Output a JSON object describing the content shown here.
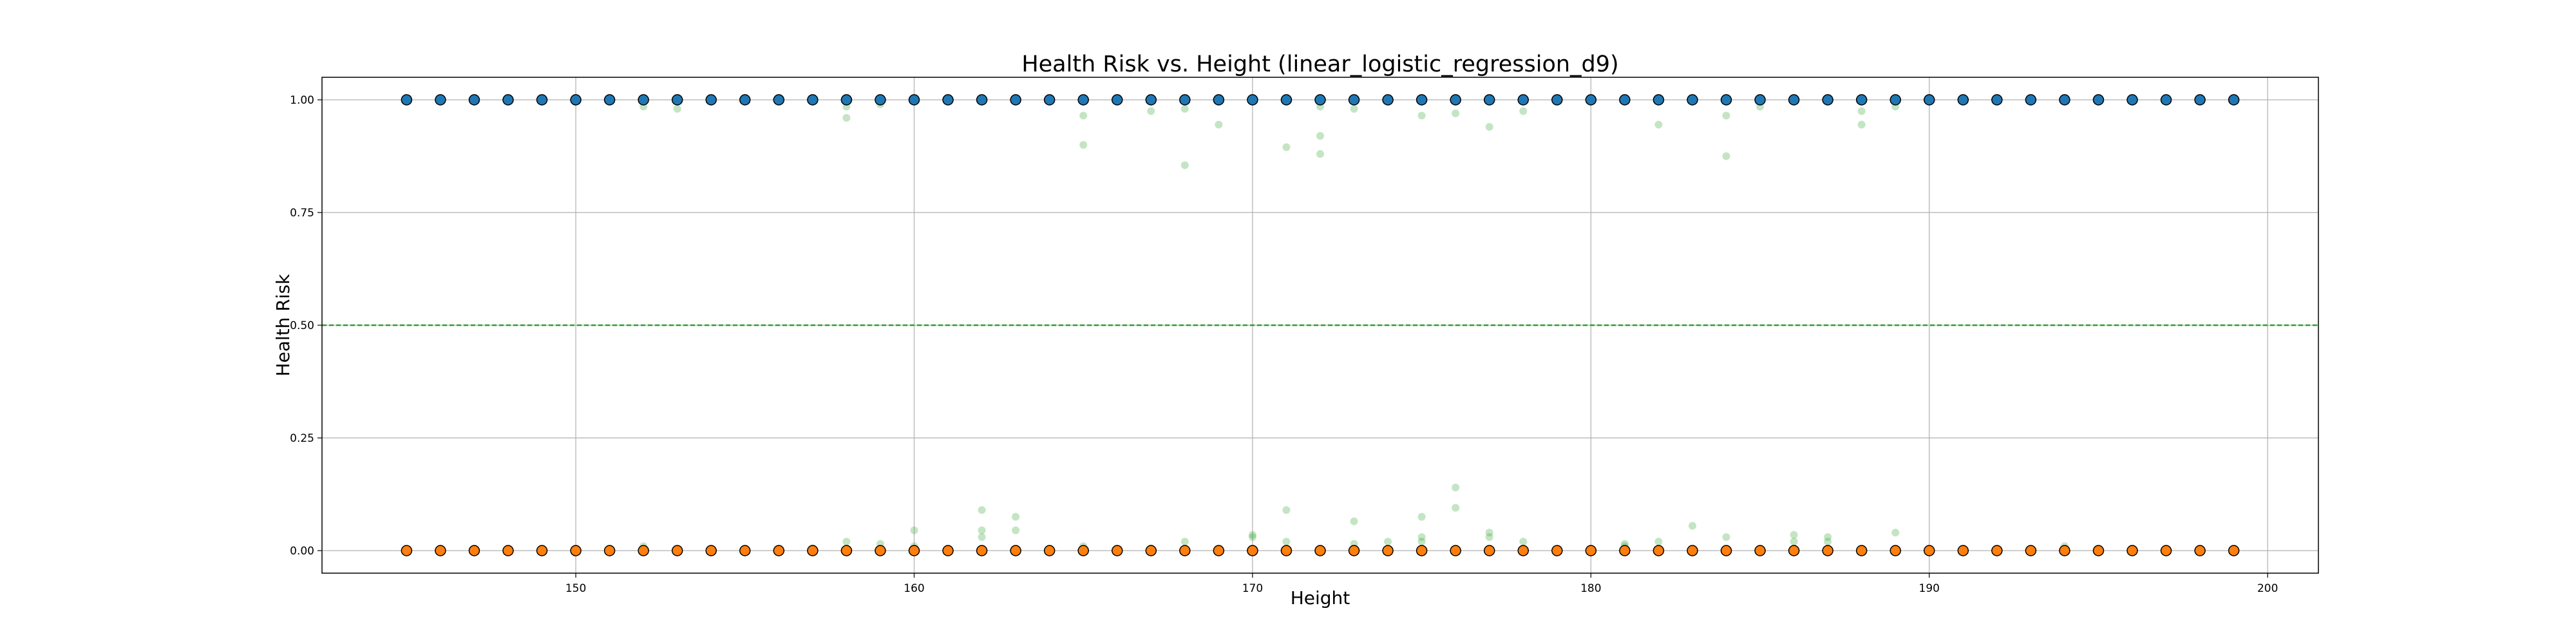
{
  "chart_data": {
    "type": "scatter",
    "title": "Health Risk vs. Height (linear_logistic_regression_d9)",
    "xlabel": "Height",
    "ylabel": "Health Risk",
    "xlim": [
      142.5,
      201.5
    ],
    "ylim": [
      -0.05,
      1.05
    ],
    "x_ticks": [
      150,
      160,
      170,
      180,
      190,
      200
    ],
    "y_ticks": [
      0.0,
      0.25,
      0.5,
      0.75,
      1.0
    ],
    "x_tick_labels": [
      "150",
      "160",
      "170",
      "180",
      "190",
      "200"
    ],
    "y_tick_labels": [
      "0.00",
      "0.25",
      "0.50",
      "0.75",
      "1.00"
    ],
    "grid": true,
    "threshold": {
      "y": 0.5,
      "color": "#2ca02c",
      "style": "dashed"
    },
    "colors": {
      "class_1": "#1f77b4",
      "class_0": "#ff7f0e",
      "predicted": "#2ca02c",
      "edge": "#000000",
      "grid": "#b0b0b0"
    },
    "series": [
      {
        "points": [
          [
            145,
            1
          ],
          [
            146,
            1
          ],
          [
            147,
            1
          ],
          [
            148,
            1
          ],
          [
            149,
            1
          ],
          [
            150,
            1
          ],
          [
            151,
            1
          ],
          [
            152,
            1
          ],
          [
            153,
            1
          ],
          [
            154,
            1
          ],
          [
            155,
            1
          ],
          [
            156,
            1
          ],
          [
            157,
            1
          ],
          [
            158,
            1
          ],
          [
            159,
            1
          ],
          [
            160,
            1
          ],
          [
            161,
            1
          ],
          [
            162,
            1
          ],
          [
            163,
            1
          ],
          [
            164,
            1
          ],
          [
            165,
            1
          ],
          [
            166,
            1
          ],
          [
            167,
            1
          ],
          [
            168,
            1
          ],
          [
            169,
            1
          ],
          [
            170,
            1
          ],
          [
            171,
            1
          ],
          [
            172,
            1
          ],
          [
            173,
            1
          ],
          [
            174,
            1
          ],
          [
            175,
            1
          ],
          [
            176,
            1
          ],
          [
            177,
            1
          ],
          [
            178,
            1
          ],
          [
            179,
            1
          ],
          [
            180,
            1
          ],
          [
            181,
            1
          ],
          [
            182,
            1
          ],
          [
            183,
            1
          ],
          [
            184,
            1
          ],
          [
            185,
            1
          ],
          [
            186,
            1
          ],
          [
            187,
            1
          ],
          [
            188,
            1
          ],
          [
            189,
            1
          ],
          [
            190,
            1
          ],
          [
            191,
            1
          ],
          [
            192,
            1
          ],
          [
            193,
            1
          ],
          [
            194,
            1
          ],
          [
            195,
            1
          ],
          [
            196,
            1
          ],
          [
            197,
            1
          ],
          [
            198,
            1
          ],
          [
            199,
            1
          ]
        ]
      },
      {
        "points": [
          [
            145,
            0
          ],
          [
            146,
            0
          ],
          [
            147,
            0
          ],
          [
            148,
            0
          ],
          [
            149,
            0
          ],
          [
            150,
            0
          ],
          [
            151,
            0
          ],
          [
            152,
            0
          ],
          [
            153,
            0
          ],
          [
            154,
            0
          ],
          [
            155,
            0
          ],
          [
            156,
            0
          ],
          [
            157,
            0
          ],
          [
            158,
            0
          ],
          [
            159,
            0
          ],
          [
            160,
            0
          ],
          [
            161,
            0
          ],
          [
            162,
            0
          ],
          [
            163,
            0
          ],
          [
            164,
            0
          ],
          [
            165,
            0
          ],
          [
            166,
            0
          ],
          [
            167,
            0
          ],
          [
            168,
            0
          ],
          [
            169,
            0
          ],
          [
            170,
            0
          ],
          [
            171,
            0
          ],
          [
            172,
            0
          ],
          [
            173,
            0
          ],
          [
            174,
            0
          ],
          [
            175,
            0
          ],
          [
            176,
            0
          ],
          [
            177,
            0
          ],
          [
            178,
            0
          ],
          [
            179,
            0
          ],
          [
            180,
            0
          ],
          [
            181,
            0
          ],
          [
            182,
            0
          ],
          [
            183,
            0
          ],
          [
            184,
            0
          ],
          [
            185,
            0
          ],
          [
            186,
            0
          ],
          [
            187,
            0
          ],
          [
            188,
            0
          ],
          [
            189,
            0
          ],
          [
            190,
            0
          ],
          [
            191,
            0
          ],
          [
            192,
            0
          ],
          [
            193,
            0
          ],
          [
            194,
            0
          ],
          [
            195,
            0
          ],
          [
            196,
            0
          ],
          [
            197,
            0
          ],
          [
            198,
            0
          ],
          [
            199,
            0
          ]
        ]
      },
      {
        "points": [
          [
            152,
            0.985
          ],
          [
            153,
            0.98
          ],
          [
            158,
            0.985
          ],
          [
            158,
            0.96
          ],
          [
            159,
            0.99
          ],
          [
            165,
            0.965
          ],
          [
            165,
            0.9
          ],
          [
            167,
            0.975
          ],
          [
            168,
            0.98
          ],
          [
            168,
            0.855
          ],
          [
            169,
            0.945
          ],
          [
            171,
            0.895
          ],
          [
            172,
            0.985
          ],
          [
            172,
            0.92
          ],
          [
            172,
            0.88
          ],
          [
            173,
            0.98
          ],
          [
            175,
            0.965
          ],
          [
            176,
            0.97
          ],
          [
            177,
            0.94
          ],
          [
            178,
            0.975
          ],
          [
            182,
            0.945
          ],
          [
            184,
            0.965
          ],
          [
            184,
            0.875
          ],
          [
            185,
            0.985
          ],
          [
            188,
            0.975
          ],
          [
            188,
            0.945
          ],
          [
            189,
            0.985
          ],
          [
            157,
            0.005
          ],
          [
            158,
            0.02
          ],
          [
            159,
            0.015
          ],
          [
            160,
            0.045
          ],
          [
            160,
            0.01
          ],
          [
            162,
            0.09
          ],
          [
            162,
            0.045
          ],
          [
            162,
            0.03
          ],
          [
            163,
            0.075
          ],
          [
            163,
            0.045
          ],
          [
            167,
            0.005
          ],
          [
            168,
            0.02
          ],
          [
            170,
            0.03
          ],
          [
            170,
            0.035
          ],
          [
            171,
            0.09
          ],
          [
            171,
            0.02
          ],
          [
            173,
            0.065
          ],
          [
            173,
            0.015
          ],
          [
            174,
            0.02
          ],
          [
            175,
            0.075
          ],
          [
            175,
            0.03
          ],
          [
            175,
            0.02
          ],
          [
            176,
            0.14
          ],
          [
            176,
            0.095
          ],
          [
            177,
            0.04
          ],
          [
            177,
            0.03
          ],
          [
            178,
            0.02
          ],
          [
            181,
            0.015
          ],
          [
            181,
            0.01
          ],
          [
            182,
            0.02
          ],
          [
            183,
            0.055
          ],
          [
            184,
            0.03
          ],
          [
            186,
            0.035
          ],
          [
            186,
            0.02
          ],
          [
            187,
            0.03
          ],
          [
            187,
            0.02
          ],
          [
            189,
            0.04
          ],
          [
            194,
            0.01
          ],
          [
            152,
            0.01
          ],
          [
            165,
            0.01
          ]
        ]
      }
    ]
  }
}
